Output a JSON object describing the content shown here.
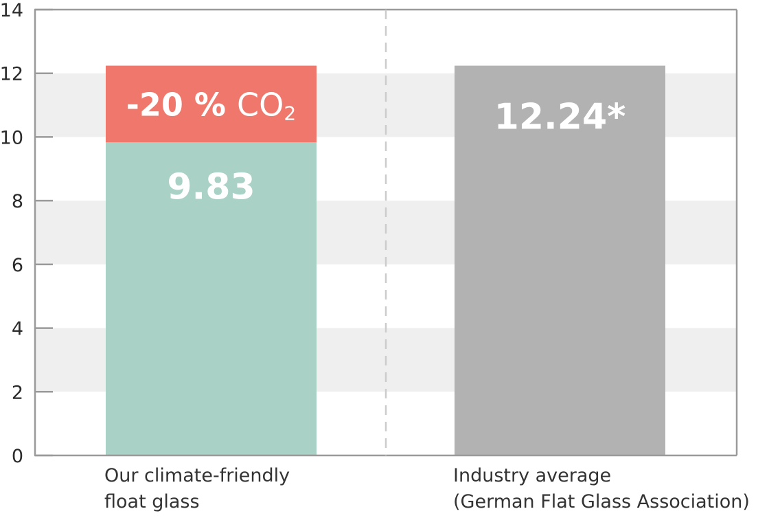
{
  "chart_data": {
    "type": "bar",
    "ylim": [
      0,
      14
    ],
    "yticks": [
      0,
      2,
      4,
      6,
      8,
      10,
      12,
      14
    ],
    "grid": "alternating horizontal bands",
    "categories": [
      [
        "Our climate-friendly",
        "float glass"
      ],
      [
        "Industry average",
        "(German Flat Glass Association)"
      ]
    ],
    "bars": [
      {
        "total": 12.24,
        "segments": [
          {
            "value": 9.83,
            "label": "9.83",
            "color": "#aad1c5"
          },
          {
            "value": 2.41,
            "label_main": "-20 %",
            "label_unit": "CO",
            "label_sub": "2",
            "color": "#f0776b"
          }
        ]
      },
      {
        "total": 12.24,
        "segments": [
          {
            "value": 12.24,
            "label": "12.24*",
            "color": "#b2b2b2"
          }
        ]
      }
    ],
    "colors": {
      "band": "#efefef",
      "axis": "#9a9a9a",
      "divider": "#cccccc"
    }
  }
}
